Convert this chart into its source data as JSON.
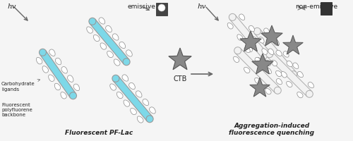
{
  "fig_width": 5.0,
  "fig_height": 2.01,
  "dpi": 100,
  "bg_color": "#f5f5f5",
  "rod_color_cyan": "#7dd8e8",
  "rod_color_white": "#f2f2f2",
  "rod_outline_cyan": "#999999",
  "rod_outline_white": "#aaaaaa",
  "star_color": "#888888",
  "star_edge": "#555555",
  "teardrop_fill": "#ffffff",
  "teardrop_edge": "#888888",
  "arrow_color": "#666666",
  "text_color": "#222222",
  "label_hv_left": "hv",
  "label_hv_right": "hv",
  "label_emissive": "emissive",
  "label_non_emissive": "non-emissive",
  "label_ctb": "CTB",
  "label_pflac": "Fluorescent PF-Lac",
  "label_agg": "Aggregation-induced\nfluorescence quenching",
  "label_carb": "Carbohydrate\nligands",
  "label_poly": "Fluorescent\npolyfluorene\nbackbone"
}
